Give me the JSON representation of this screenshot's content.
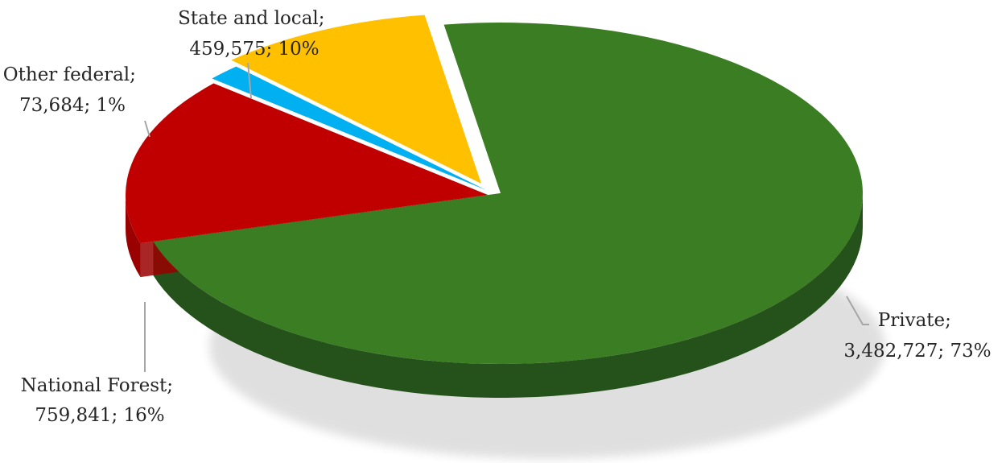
{
  "chart_data": {
    "type": "pie",
    "title": "",
    "categories": [
      "Private",
      "National Forest",
      "Other federal",
      "State and local"
    ],
    "values": [
      3482727,
      759841,
      73684,
      459575
    ],
    "percents": [
      73,
      16,
      1,
      10
    ],
    "colors": [
      "#3b7d23",
      "#c00000",
      "#00b0f0",
      "#ffc000"
    ],
    "side_colors": [
      "#24521a",
      "#9a0000",
      "#0a5a78",
      "#b38600"
    ],
    "legend": "none",
    "data_labels": [
      {
        "name": "Private;",
        "detail": "3,482,727; 73%"
      },
      {
        "name": "National Forest;",
        "detail": "759,841; 16%"
      },
      {
        "name": "Other federal;",
        "detail": "73,684; 1%"
      },
      {
        "name": "State and local;",
        "detail": "459,575; 10%"
      }
    ]
  }
}
